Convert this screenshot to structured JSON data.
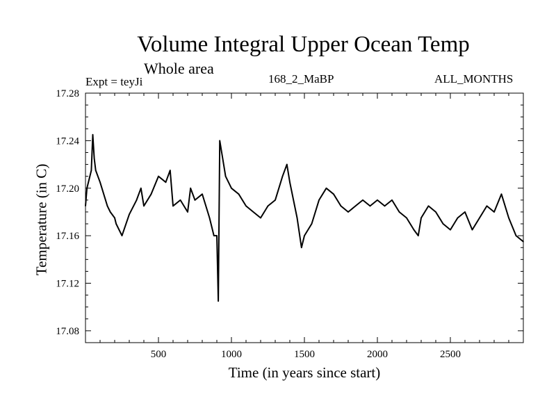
{
  "chart_data": {
    "type": "line",
    "title": "Volume Integral Upper Ocean Temp",
    "subtitle": "Whole area",
    "experiment": "Expt = teyJi",
    "run_label": "168_2_MaBP",
    "months_label": "ALL_MONTHS",
    "xlabel": "Time (in years since start)",
    "ylabel": "Temperature (in C)",
    "xlim": [
      0,
      3000
    ],
    "ylim": [
      17.07,
      17.28
    ],
    "x_ticks": [
      500,
      1000,
      1500,
      2000,
      2500
    ],
    "y_ticks": [
      17.08,
      17.12,
      17.16,
      17.2,
      17.24,
      17.28
    ],
    "y_tick_labels": [
      "17.08",
      "17.12",
      "17.16",
      "17.20",
      "17.24",
      "17.28"
    ],
    "grid": false,
    "series": [
      {
        "name": "Volume integral upper ocean temperature",
        "x": [
          0,
          10,
          30,
          40,
          50,
          60,
          70,
          100,
          150,
          170,
          200,
          210,
          250,
          300,
          350,
          380,
          400,
          450,
          500,
          550,
          580,
          600,
          650,
          700,
          720,
          750,
          800,
          850,
          880,
          900,
          910,
          920,
          940,
          960,
          1000,
          1050,
          1100,
          1150,
          1200,
          1250,
          1300,
          1350,
          1380,
          1400,
          1450,
          1480,
          1500,
          1550,
          1600,
          1650,
          1700,
          1750,
          1800,
          1850,
          1900,
          1950,
          2000,
          2050,
          2100,
          2150,
          2200,
          2250,
          2280,
          2300,
          2350,
          2400,
          2450,
          2500,
          2550,
          2600,
          2650,
          2700,
          2750,
          2800,
          2850,
          2900,
          2950,
          3000
        ],
        "values": [
          17.185,
          17.2,
          17.21,
          17.215,
          17.245,
          17.225,
          17.215,
          17.205,
          17.185,
          17.18,
          17.175,
          17.17,
          17.16,
          17.178,
          17.19,
          17.2,
          17.185,
          17.195,
          17.21,
          17.205,
          17.215,
          17.185,
          17.19,
          17.18,
          17.2,
          17.19,
          17.195,
          17.175,
          17.16,
          17.16,
          17.105,
          17.24,
          17.225,
          17.21,
          17.2,
          17.195,
          17.185,
          17.18,
          17.175,
          17.185,
          17.19,
          17.21,
          17.22,
          17.205,
          17.175,
          17.15,
          17.16,
          17.17,
          17.19,
          17.2,
          17.195,
          17.185,
          17.18,
          17.185,
          17.19,
          17.185,
          17.19,
          17.185,
          17.19,
          17.18,
          17.175,
          17.165,
          17.16,
          17.175,
          17.185,
          17.18,
          17.17,
          17.165,
          17.175,
          17.18,
          17.165,
          17.175,
          17.185,
          17.18,
          17.195,
          17.175,
          17.16,
          17.155
        ]
      }
    ]
  }
}
